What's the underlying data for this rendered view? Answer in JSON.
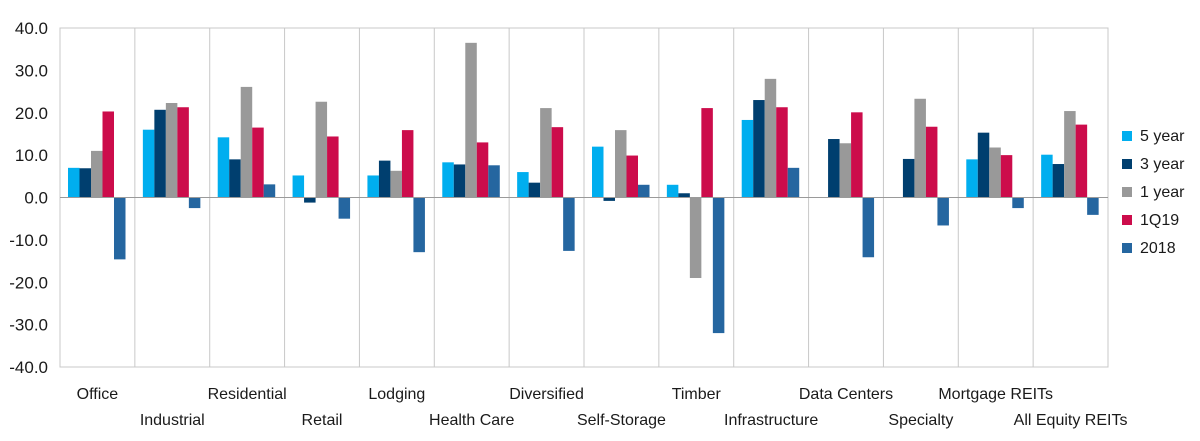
{
  "chart_data": {
    "type": "bar",
    "title": "",
    "xlabel": "",
    "ylabel": "",
    "ylim": [
      -40,
      40
    ],
    "yticks": [
      40,
      30,
      20,
      10,
      0,
      -10,
      -20,
      -30,
      -40
    ],
    "ytick_labels": [
      "40.0",
      "30.0",
      "20.0",
      "10.0",
      "0.0",
      "-10.0",
      "-20.0",
      "-30.0",
      "-40.0"
    ],
    "grid": "vertical category separators",
    "legend_position": "right",
    "categories": [
      "Office",
      "Industrial",
      "Residential",
      "Retail",
      "Lodging",
      "Health Care",
      "Diversified",
      "Self-Storage",
      "Timber",
      "Infrastructure",
      "Data Centers",
      "Specialty",
      "Mortgage REITs",
      "All Equity REITs"
    ],
    "series": [
      {
        "name": "5 year",
        "color": "#00aeef",
        "values": [
          7.0,
          16.0,
          14.2,
          5.2,
          5.2,
          8.3,
          6.0,
          12.0,
          3.0,
          18.3,
          null,
          null,
          9.0,
          10.1
        ]
      },
      {
        "name": "3 year",
        "color": "#003f6f",
        "values": [
          6.9,
          20.7,
          9.0,
          -1.2,
          8.7,
          7.8,
          3.5,
          -0.8,
          1.0,
          23.0,
          13.8,
          9.1,
          15.3,
          7.9
        ]
      },
      {
        "name": "1 year",
        "color": "#999999",
        "values": [
          11.0,
          22.3,
          26.1,
          22.6,
          6.3,
          36.5,
          21.1,
          15.9,
          -19.0,
          28.0,
          12.8,
          23.3,
          11.8,
          20.4
        ]
      },
      {
        "name": "1Q19",
        "color": "#cc0c4b",
        "values": [
          20.3,
          21.3,
          16.5,
          14.4,
          15.9,
          13.0,
          16.6,
          9.9,
          21.1,
          21.3,
          20.1,
          16.7,
          10.0,
          17.2
        ]
      },
      {
        "name": "2018",
        "color": "#2566a0",
        "values": [
          -14.6,
          -2.5,
          3.1,
          -5.0,
          -12.9,
          7.6,
          -12.6,
          3.0,
          -32.0,
          7.0,
          -14.1,
          -6.6,
          -2.5,
          -4.1
        ]
      }
    ]
  }
}
